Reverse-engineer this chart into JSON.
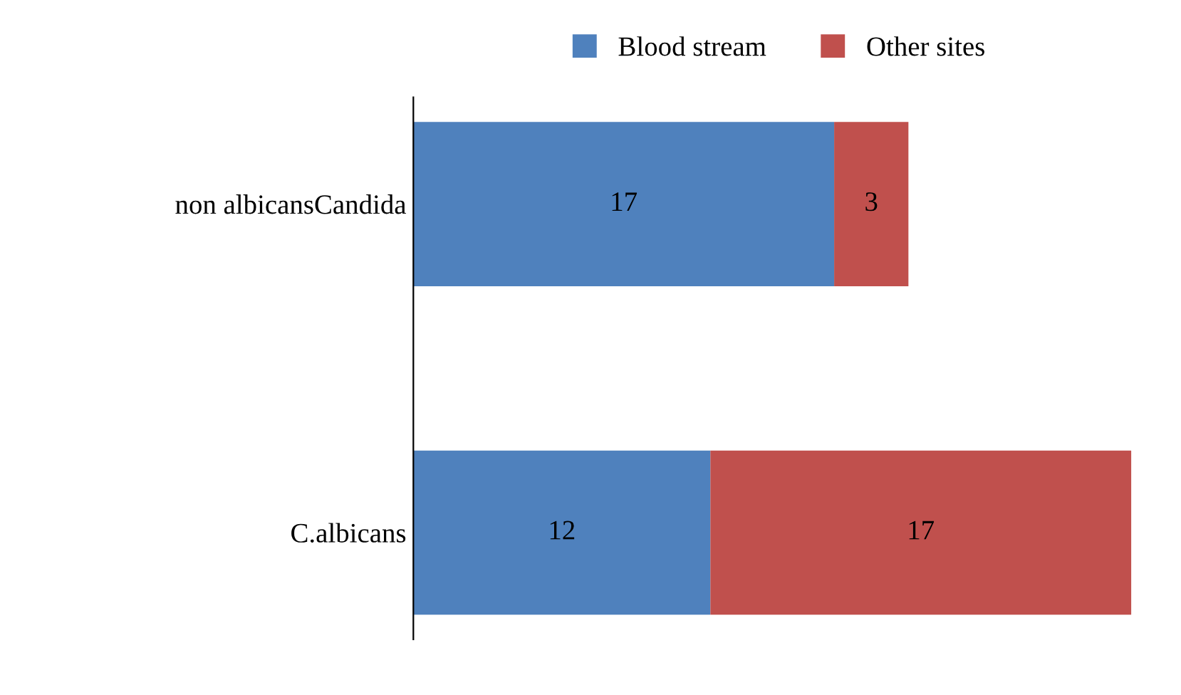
{
  "chart_data": {
    "type": "bar",
    "orientation": "horizontal",
    "stacked": true,
    "data_labels": true,
    "legend": "top",
    "categories": [
      "non albicansCandida",
      "C.albicans"
    ],
    "series": [
      {
        "name": "Blood stream",
        "color": "#4f81bd",
        "values": [
          17,
          12
        ]
      },
      {
        "name": "Other sites",
        "color": "#c0504d",
        "values": [
          3,
          17
        ]
      }
    ]
  }
}
